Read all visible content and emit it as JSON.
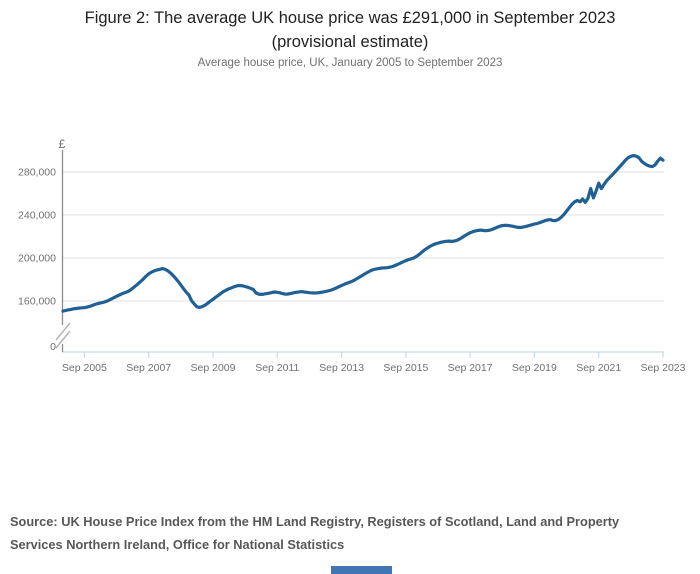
{
  "header": {
    "title_line1": "Figure 2: The average UK house price was £291,000 in September 2023",
    "title_line2": "(provisional estimate)",
    "subtitle": "Average house price, UK, January 2005 to September 2023"
  },
  "source": {
    "text": "Source: UK House Price Index from the HM Land Registry, Registers of Scotland, Land and Property Services Northern Ireland, Office for National Statistics"
  },
  "footer": {
    "bar_color": "#4176b5"
  },
  "chart_data": {
    "type": "line",
    "title": "Figure 2: The average UK house price was £291,000 in September 2023 (provisional estimate)",
    "subtitle": "Average house price, UK, January 2005 to September 2023",
    "unit_label": "£",
    "xlabel": "",
    "ylabel": "£",
    "x_frequency": "monthly",
    "x_start": "2005-01",
    "x_end": "2023-09",
    "y_axis_break": true,
    "grid": "horizontal-only",
    "legend": "none",
    "x_ticks": [
      {
        "label": "Sep 2005",
        "m": 8
      },
      {
        "label": "Sep 2007",
        "m": 32
      },
      {
        "label": "Sep 2009",
        "m": 56
      },
      {
        "label": "Sep 2011",
        "m": 80
      },
      {
        "label": "Sep 2013",
        "m": 104
      },
      {
        "label": "Sep 2015",
        "m": 128
      },
      {
        "label": "Sep 2017",
        "m": 152
      },
      {
        "label": "Sep 2019",
        "m": 176
      },
      {
        "label": "Sep 2021",
        "m": 200
      },
      {
        "label": "Sep 2023",
        "m": 224
      }
    ],
    "y_ticks": [
      {
        "value": 0,
        "label": "0"
      },
      {
        "value": 160000,
        "label": "160,000"
      },
      {
        "value": 200000,
        "label": "200,000"
      },
      {
        "value": 240000,
        "label": "240,000"
      },
      {
        "value": 280000,
        "label": "280,000"
      }
    ],
    "colors": {
      "line": "#206095",
      "grid": "#e2e2e2",
      "axis": "#8c8c8c",
      "x_axis": "#c9d6e3",
      "break_mark": "#b3b3b3",
      "tick_text": "#707071"
    },
    "series": [
      {
        "name": "Average UK house price (£), monthly, Jan 2005 to Sep 2023",
        "color": "#206095",
        "values": [
          150600,
          151200,
          151800,
          152200,
          152700,
          153000,
          153400,
          153700,
          153800,
          154300,
          155000,
          155900,
          156800,
          157600,
          158200,
          158700,
          159500,
          160600,
          161800,
          163100,
          164400,
          165600,
          166700,
          167600,
          168600,
          170000,
          171800,
          173900,
          176000,
          178200,
          180600,
          183100,
          185200,
          186800,
          188000,
          188800,
          189300,
          190100,
          189600,
          188300,
          186400,
          184000,
          181200,
          178100,
          174800,
          171400,
          168200,
          165600,
          160200,
          157200,
          154600,
          154000,
          154800,
          156100,
          157900,
          159800,
          161600,
          163500,
          165300,
          167200,
          168900,
          170200,
          171400,
          172400,
          173400,
          174100,
          174400,
          174100,
          173500,
          172700,
          171800,
          170800,
          167600,
          166400,
          166100,
          166400,
          166900,
          167300,
          167900,
          168400,
          168100,
          167600,
          166900,
          166300,
          166500,
          167000,
          167600,
          168100,
          168400,
          168700,
          168400,
          168100,
          167700,
          167500,
          167400,
          167600,
          167900,
          168300,
          168800,
          169400,
          170100,
          171000,
          172100,
          173300,
          174400,
          175500,
          176500,
          177500,
          178400,
          179700,
          181100,
          182700,
          184200,
          185700,
          187100,
          188400,
          189300,
          189900,
          190300,
          190700,
          190800,
          191000,
          191400,
          192100,
          193000,
          194100,
          195300,
          196500,
          197600,
          198500,
          199300,
          200100,
          201600,
          203400,
          205500,
          207500,
          209200,
          210800,
          212100,
          213100,
          213900,
          214600,
          215100,
          215500,
          215700,
          215400,
          215700,
          216400,
          217600,
          219100,
          220700,
          222200,
          223500,
          224500,
          225200,
          225700,
          226000,
          225600,
          225400,
          225700,
          226400,
          227400,
          228500,
          229500,
          230100,
          230400,
          230300,
          230000,
          229500,
          228900,
          228500,
          228500,
          228900,
          229500,
          230200,
          230900,
          231500,
          232100,
          232900,
          233900,
          234800,
          235400,
          235600,
          234800,
          234900,
          236000,
          237900,
          240500,
          243600,
          246900,
          249900,
          252300,
          253500,
          252300,
          254900,
          251700,
          255600,
          264600,
          255900,
          262100,
          269600,
          264600,
          268600,
          272100,
          274600,
          277100,
          279800,
          282600,
          285300,
          288100,
          291100,
          293300,
          294600,
          295300,
          294700,
          293300,
          290000,
          288000,
          286500,
          285500,
          285000,
          286500,
          290000,
          292800,
          291000
        ]
      }
    ]
  }
}
